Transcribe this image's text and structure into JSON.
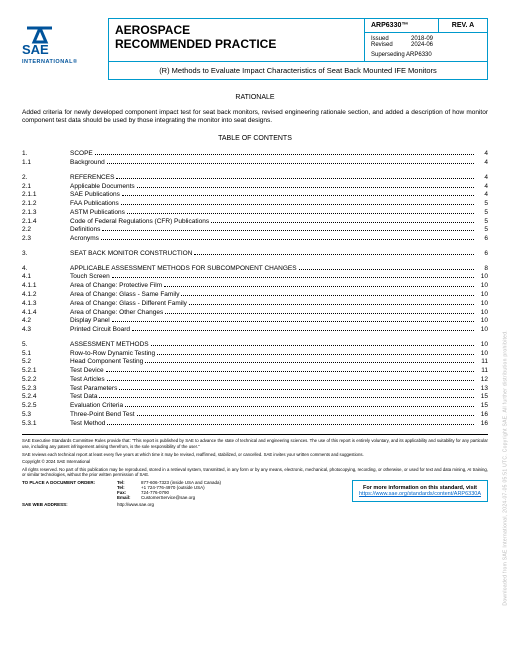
{
  "logo": {
    "intl": "INTERNATIONAL®",
    "fill": "#00539b"
  },
  "header": {
    "title_line1": "AEROSPACE",
    "title_line2": "RECOMMENDED PRACTICE",
    "arp": "ARP6330™",
    "rev": "REV. A",
    "issued_label": "Issued",
    "issued_date": "2018-09",
    "revised_label": "Revised",
    "revised_date": "2024-06",
    "supersede": "Superseding ARP6330",
    "subtitle": "(R) Methods to Evaluate Impact Characteristics of Seat Back Mounted IFE Monitors"
  },
  "rationale": {
    "head": "RATIONALE",
    "text": "Added criteria for newly developed component impact test for seat back monitors, revised engineering rationale section, and added a description of how monitor component test data should be used by those integrating the monitor into seat designs."
  },
  "toc_head": "TABLE OF CONTENTS",
  "toc": [
    [
      {
        "n": "1.",
        "t": "SCOPE",
        "p": "4"
      },
      {
        "n": "1.1",
        "t": "Background",
        "p": "4"
      }
    ],
    [
      {
        "n": "2.",
        "t": "REFERENCES",
        "p": "4"
      },
      {
        "n": "2.1",
        "t": "Applicable Documents",
        "p": "4"
      },
      {
        "n": "2.1.1",
        "t": "SAE Publications",
        "p": "4"
      },
      {
        "n": "2.1.2",
        "t": "FAA Publications",
        "p": "5"
      },
      {
        "n": "2.1.3",
        "t": "ASTM Publications",
        "p": "5"
      },
      {
        "n": "2.1.4",
        "t": "Code of Federal Regulations (CFR) Publications",
        "p": "5"
      },
      {
        "n": "2.2",
        "t": "Definitions",
        "p": "5"
      },
      {
        "n": "2.3",
        "t": "Acronyms",
        "p": "6"
      }
    ],
    [
      {
        "n": "3.",
        "t": "SEAT BACK MONITOR CONSTRUCTION",
        "p": "6"
      }
    ],
    [
      {
        "n": "4.",
        "t": "APPLICABLE ASSESSMENT METHODS FOR SUBCOMPONENT CHANGES",
        "p": "8"
      },
      {
        "n": "4.1",
        "t": "Touch Screen",
        "p": "10"
      },
      {
        "n": "4.1.1",
        "t": "Area of Change: Protective Film",
        "p": "10"
      },
      {
        "n": "4.1.2",
        "t": "Area of Change: Glass - Same Family",
        "p": "10"
      },
      {
        "n": "4.1.3",
        "t": "Area of Change: Glass - Different Family",
        "p": "10"
      },
      {
        "n": "4.1.4",
        "t": "Area of Change: Other Changes",
        "p": "10"
      },
      {
        "n": "4.2",
        "t": "Display Panel",
        "p": "10"
      },
      {
        "n": "4.3",
        "t": "Printed Circuit Board",
        "p": "10"
      }
    ],
    [
      {
        "n": "5.",
        "t": "ASSESSMENT METHODS",
        "p": "10"
      },
      {
        "n": "5.1",
        "t": "Row-to-Row Dynamic Testing",
        "p": "10"
      },
      {
        "n": "5.2",
        "t": "Head Component Testing",
        "p": "11"
      },
      {
        "n": "5.2.1",
        "t": "Test Device",
        "p": "11"
      },
      {
        "n": "5.2.2",
        "t": "Test Articles",
        "p": "12"
      },
      {
        "n": "5.2.3",
        "t": "Test Parameters",
        "p": "13"
      },
      {
        "n": "5.2.4",
        "t": "Test Data",
        "p": "15"
      },
      {
        "n": "5.2.5",
        "t": "Evaluation Criteria",
        "p": "15"
      },
      {
        "n": "5.3",
        "t": "Three-Point Bend Test",
        "p": "16"
      },
      {
        "n": "5.3.1",
        "t": "Test Method",
        "p": "16"
      }
    ]
  ],
  "footer": {
    "p1": "SAE Executive Standards Committee Rules provide that: \"This report is published by SAE to advance the state of technical and engineering sciences. The use of this report is entirely voluntary, and its applicability and suitability for any particular use, including any patent infringement arising therefrom, is the sole responsibility of the user.\"",
    "p2": "SAE reviews each technical report at least every five years at which time it may be revised, reaffirmed, stabilized, or cancelled. SAE invites your written comments and suggestions.",
    "p3": "Copyright © 2024 SAE International",
    "p4": "All rights reserved. No part of this publication may be reproduced, stored in a retrieval system, transmitted, in any form or by any means, electronic, mechanical, photocopying, recording, or otherwise, or used for text and data mining, AI training, or similar technologies, without the prior written permission of SAE.",
    "order_label": "TO PLACE A DOCUMENT ORDER:",
    "tel_k": "Tel:",
    "tel_v": "877-606-7323 (inside USA and Canada)",
    "tel2_k": "Tel:",
    "tel2_v": "+1 724-776-4970 (outside USA)",
    "fax_k": "Fax:",
    "fax_v": "724-776-0790",
    "email_k": "Email:",
    "email_v": "CustomerService@sae.org",
    "web_label": "SAE WEB ADDRESS:",
    "web_v": "http://www.sae.org",
    "box_line1": "For more information on this standard, visit",
    "box_link": "https://www.sae.org/standards/content/ARP6330A"
  },
  "watermark": "Downloaded from SAE International, 2024-07-05 05:51 UTC. Copyright SAE. All further distribution prohibited."
}
